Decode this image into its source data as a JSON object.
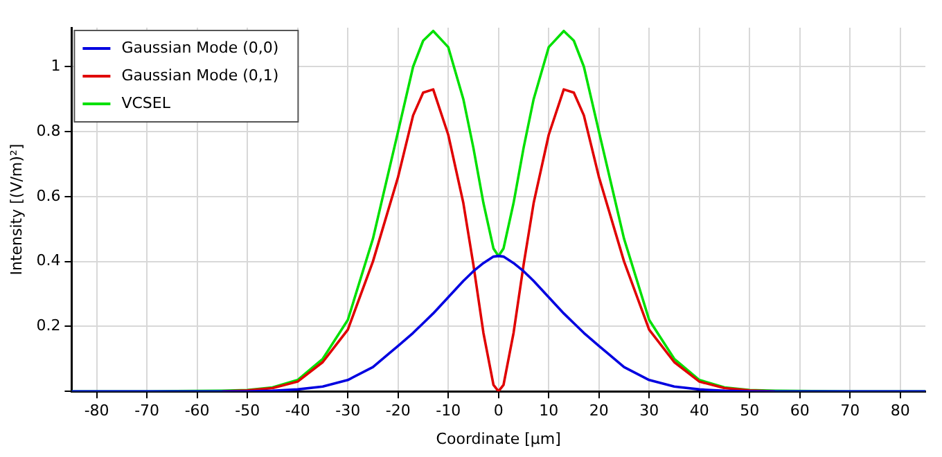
{
  "chart_data": {
    "type": "line",
    "xlabel": "Coordinate [µm]",
    "ylabel": "Intensity [(V/m)²]",
    "x": [
      -85,
      -70,
      -55,
      -50,
      -45,
      -40,
      -35,
      -30,
      -25,
      -20,
      -17,
      -15,
      -13,
      -10,
      -7,
      -5,
      -3,
      -1,
      0,
      1,
      3,
      5,
      7,
      10,
      13,
      15,
      17,
      20,
      25,
      30,
      35,
      40,
      45,
      50,
      55,
      70,
      85
    ],
    "series": [
      {
        "name": "Gaussian Mode (0,0)",
        "color": "#0000e0",
        "values": [
          0,
          0,
          0,
          0,
          0.002,
          0.006,
          0.015,
          0.035,
          0.075,
          0.14,
          0.18,
          0.21,
          0.24,
          0.29,
          0.34,
          0.37,
          0.395,
          0.415,
          0.417,
          0.415,
          0.395,
          0.37,
          0.34,
          0.29,
          0.24,
          0.21,
          0.18,
          0.14,
          0.075,
          0.035,
          0.015,
          0.006,
          0.002,
          0,
          0,
          0,
          0
        ]
      },
      {
        "name": "Gaussian Mode (0,1)",
        "color": "#e00000",
        "values": [
          null,
          null,
          0,
          0.003,
          0.01,
          0.03,
          0.09,
          0.19,
          0.4,
          0.66,
          0.85,
          0.92,
          0.93,
          0.79,
          0.58,
          0.39,
          0.18,
          0.02,
          0,
          0.02,
          0.18,
          0.39,
          0.58,
          0.79,
          0.93,
          0.92,
          0.85,
          0.66,
          0.4,
          0.19,
          0.09,
          0.03,
          0.01,
          0.003,
          0,
          null,
          null
        ]
      },
      {
        "name": "VCSEL",
        "color": "#00e000",
        "values": [
          0,
          0,
          0.002,
          0.004,
          0.012,
          0.035,
          0.1,
          0.22,
          0.47,
          0.8,
          1.0,
          1.08,
          1.11,
          1.06,
          0.9,
          0.75,
          0.58,
          0.44,
          0.417,
          0.44,
          0.58,
          0.75,
          0.9,
          1.06,
          1.11,
          1.08,
          1.0,
          0.8,
          0.47,
          0.22,
          0.1,
          0.035,
          0.012,
          0.004,
          0.002,
          0,
          0
        ]
      }
    ],
    "xlim": [
      -85,
      85
    ],
    "xticks": [
      -80,
      -70,
      -60,
      -50,
      -40,
      -30,
      -20,
      -10,
      0,
      10,
      20,
      30,
      40,
      50,
      60,
      70,
      80
    ],
    "ylim": [
      0,
      1.12
    ],
    "yticks": [
      {
        "value": 0,
        "label": null
      },
      0.2,
      0.4,
      0.6,
      0.8,
      1
    ],
    "grid": true,
    "legend": "top left",
    "marker": "none",
    "line_style": "solid"
  }
}
